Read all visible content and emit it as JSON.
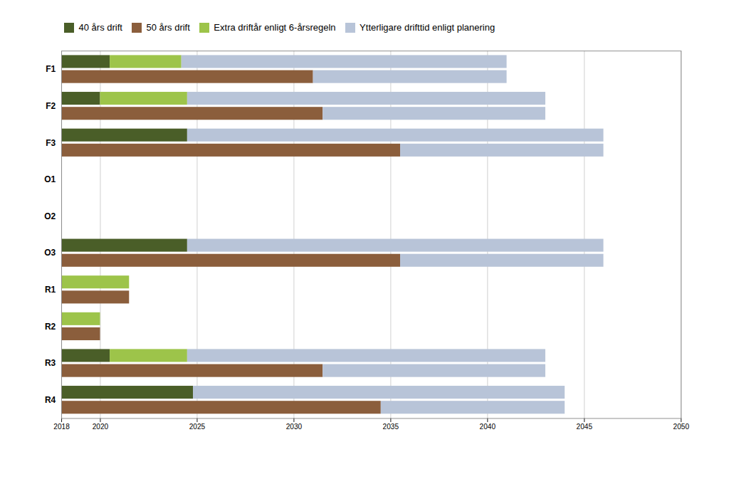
{
  "chart_data": {
    "type": "bar",
    "orientation": "horizontal",
    "categories": [
      "F1",
      "F2",
      "F3",
      "O1",
      "O2",
      "O3",
      "R1",
      "R2",
      "R3",
      "R4"
    ],
    "series": [
      {
        "name": "40 års drift",
        "color": "#4a5e28"
      },
      {
        "name": "50 års drift",
        "color": "#8b5e3c"
      },
      {
        "name": "Extra driftår enligt 6-årsregeln",
        "color": "#9dc44a"
      },
      {
        "name": "Ytterligare drifttid enligt planering",
        "color": "#b8c4d8"
      }
    ],
    "bar_data": {
      "F1": {
        "top": [
          {
            "series": "40 års drift",
            "start": 2018,
            "end": 2020.5
          },
          {
            "series": "Extra driftår enligt 6-årsregeln",
            "start": 2020.5,
            "end": 2024.2
          },
          {
            "series": "Ytterligare drifttid enligt planering",
            "start": 2024.2,
            "end": 2041
          }
        ],
        "bottom": [
          {
            "series": "50 års drift",
            "start": 2018,
            "end": 2031
          },
          {
            "series": "Ytterligare drifttid enligt planering",
            "start": 2031,
            "end": 2041
          }
        ]
      },
      "F2": {
        "top": [
          {
            "series": "40 års drift",
            "start": 2018,
            "end": 2020
          },
          {
            "series": "Extra driftår enligt 6-årsregeln",
            "start": 2020,
            "end": 2024.5
          },
          {
            "series": "Ytterligare drifttid enligt planering",
            "start": 2024.5,
            "end": 2043
          }
        ],
        "bottom": [
          {
            "series": "50 års drift",
            "start": 2018,
            "end": 2031.5
          },
          {
            "series": "Ytterligare drifttid enligt planering",
            "start": 2031.5,
            "end": 2043
          }
        ]
      },
      "F3": {
        "top": [
          {
            "series": "40 års drift",
            "start": 2018,
            "end": 2024.5
          },
          {
            "series": "Ytterligare drifttid enligt planering",
            "start": 2024.5,
            "end": 2046
          }
        ],
        "bottom": [
          {
            "series": "50 års drift",
            "start": 2018,
            "end": 2035.5
          },
          {
            "series": "Ytterligare drifttid enligt planering",
            "start": 2035.5,
            "end": 2046
          }
        ]
      },
      "O1": {
        "top": [],
        "bottom": []
      },
      "O2": {
        "top": [],
        "bottom": []
      },
      "O3": {
        "top": [
          {
            "series": "40 års drift",
            "start": 2018,
            "end": 2024.5
          },
          {
            "series": "Ytterligare drifttid enligt planering",
            "start": 2024.5,
            "end": 2046
          }
        ],
        "bottom": [
          {
            "series": "50 års drift",
            "start": 2018,
            "end": 2035.5
          },
          {
            "series": "Ytterligare drifttid enligt planering",
            "start": 2035.5,
            "end": 2046
          }
        ]
      },
      "R1": {
        "top": [
          {
            "series": "Extra driftår enligt 6-årsregeln",
            "start": 2018,
            "end": 2021.5
          }
        ],
        "bottom": [
          {
            "series": "50 års drift",
            "start": 2018,
            "end": 2021.5
          }
        ]
      },
      "R2": {
        "top": [
          {
            "series": "Extra driftår enligt 6-årsregeln",
            "start": 2018,
            "end": 2020
          }
        ],
        "bottom": [
          {
            "series": "50 års drift",
            "start": 2018,
            "end": 2020
          }
        ]
      },
      "R3": {
        "top": [
          {
            "series": "40 års drift",
            "start": 2018,
            "end": 2020.5
          },
          {
            "series": "Extra driftår enligt 6-årsregeln",
            "start": 2020.5,
            "end": 2024.5
          },
          {
            "series": "Ytterligare drifttid enligt planering",
            "start": 2024.5,
            "end": 2043
          }
        ],
        "bottom": [
          {
            "series": "50 års drift",
            "start": 2018,
            "end": 2031.5
          },
          {
            "series": "Ytterligare drifttid enligt planering",
            "start": 2031.5,
            "end": 2043
          }
        ]
      },
      "R4": {
        "top": [
          {
            "series": "40 års drift",
            "start": 2018,
            "end": 2024.8
          },
          {
            "series": "Ytterligare drifttid enligt planering",
            "start": 2024.8,
            "end": 2044
          }
        ],
        "bottom": [
          {
            "series": "50 års drift",
            "start": 2018,
            "end": 2034.5
          },
          {
            "series": "Ytterligare drifttid enligt planering",
            "start": 2034.5,
            "end": 2044
          }
        ]
      }
    },
    "xlim": [
      2018,
      2050
    ],
    "xticks": [
      2018,
      2020,
      2025,
      2030,
      2035,
      2040,
      2045,
      2050
    ],
    "grid": true
  }
}
